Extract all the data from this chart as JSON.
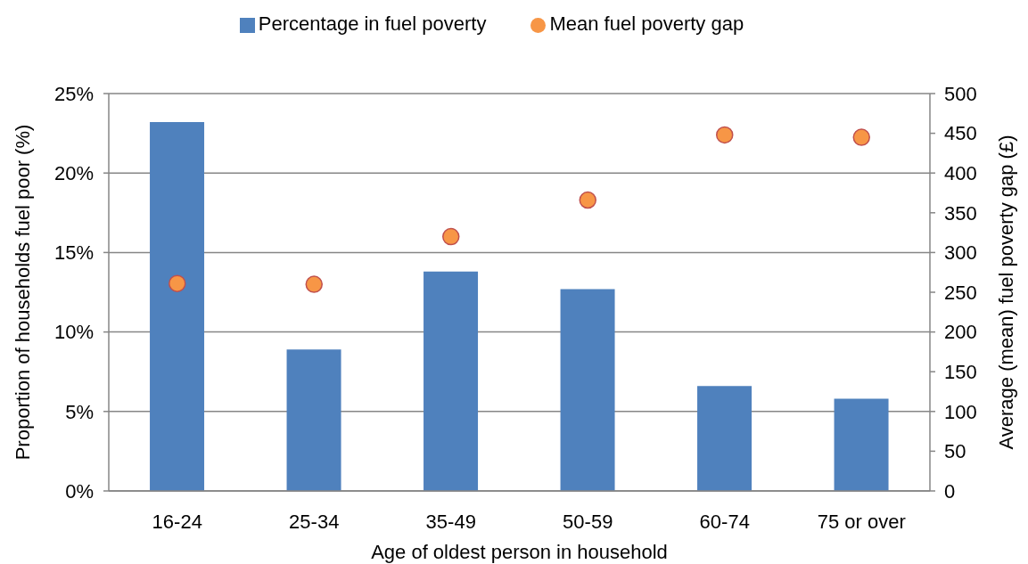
{
  "chart_data": {
    "type": "bar",
    "xlabel": "Age of oldest person in household",
    "ylabel": "Proportion of households fuel poor (%)",
    "y2label": "Average (mean) fuel poverty gap (£)",
    "categories": [
      "16-24",
      "25-34",
      "35-49",
      "50-59",
      "60-74",
      "75 or over"
    ],
    "series": [
      {
        "name": "Percentage in fuel poverty",
        "color": "#4f81bd",
        "values": [
          23.2,
          8.9,
          13.8,
          12.7,
          6.6,
          5.8
        ]
      },
      {
        "name": "Mean fuel poverty gap",
        "type": "scatter",
        "axis": "y2",
        "color": "#f79646",
        "values": [
          261,
          260,
          320,
          366,
          448,
          445
        ]
      }
    ],
    "ylim": [
      0,
      25
    ],
    "yticks": [
      {
        "value": 0,
        "label": "0%"
      },
      {
        "value": 5,
        "label": "5%"
      },
      {
        "value": 10,
        "label": "10%"
      },
      {
        "value": 15,
        "label": "15%"
      },
      {
        "value": 20,
        "label": "20%"
      },
      {
        "value": 25,
        "label": "25%"
      }
    ],
    "y2lim": [
      0,
      500
    ],
    "y2ticks": [
      0,
      50,
      100,
      150,
      200,
      250,
      300,
      350,
      400,
      450,
      500
    ],
    "grid": "y",
    "legend": "top",
    "marker": "circle"
  }
}
